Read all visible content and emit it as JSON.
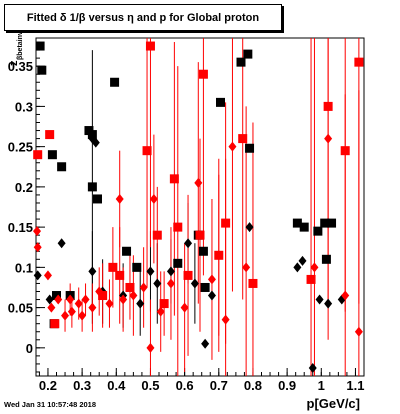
{
  "chart_data": {
    "type": "scatter",
    "title": "Fitted δ 1/β versus η and p for Global proton",
    "xlabel": "p[GeV/c]",
    "ylabel_main": "z",
    "ylabel_sub": "βbetainv",
    "xlim": [
      0.165,
      1.125
    ],
    "ylim": [
      -0.035,
      0.385
    ],
    "x_ticks": [
      "0.2",
      "0.3",
      "0.4",
      "0.5",
      "0.6",
      "0.7",
      "0.8",
      "0.9",
      "1",
      "1.1"
    ],
    "y_ticks": [
      "0",
      "0.05",
      "0.1",
      "0.15",
      "0.2",
      "0.25",
      "0.3",
      "0.35"
    ],
    "x_tick_values": [
      0.2,
      0.3,
      0.4,
      0.5,
      0.6,
      0.7,
      0.8,
      0.9,
      1.0,
      1.1
    ],
    "y_tick_values": [
      0,
      0.05,
      0.1,
      0.15,
      0.2,
      0.25,
      0.3,
      0.35
    ],
    "series": [
      {
        "color": "#000000",
        "marker": "square",
        "points": [
          {
            "x": 0.177,
            "y": 0.375,
            "err": 0.0
          },
          {
            "x": 0.182,
            "y": 0.345,
            "err": 0.0
          },
          {
            "x": 0.213,
            "y": 0.24,
            "err": 0.0
          },
          {
            "x": 0.218,
            "y": 0.03,
            "err": 0.0
          },
          {
            "x": 0.24,
            "y": 0.225,
            "err": 0.0
          },
          {
            "x": 0.32,
            "y": 0.27,
            "err": 0.0
          },
          {
            "x": 0.33,
            "y": 0.265,
            "err": 0.0
          },
          {
            "x": 0.33,
            "y": 0.2,
            "err": 0.17
          },
          {
            "x": 0.345,
            "y": 0.185,
            "err": 0.0
          },
          {
            "x": 0.395,
            "y": 0.33,
            "err": 0.0
          },
          {
            "x": 0.43,
            "y": 0.12,
            "err": 0.0
          },
          {
            "x": 0.46,
            "y": 0.1,
            "err": 0.0
          },
          {
            "x": 0.58,
            "y": 0.105,
            "err": 0.0
          },
          {
            "x": 0.64,
            "y": 0.14,
            "err": 0.0
          },
          {
            "x": 0.655,
            "y": 0.12,
            "err": 0.0
          },
          {
            "x": 0.66,
            "y": 0.075,
            "err": 0.0
          },
          {
            "x": 0.705,
            "y": 0.305,
            "err": 0.0
          },
          {
            "x": 0.765,
            "y": 0.355,
            "err": 0.0
          },
          {
            "x": 0.785,
            "y": 0.365,
            "err": 0.0
          },
          {
            "x": 0.79,
            "y": 0.248,
            "err": 0.0
          },
          {
            "x": 0.93,
            "y": 0.155,
            "err": 0.0
          },
          {
            "x": 0.95,
            "y": 0.15,
            "err": 0.0
          },
          {
            "x": 0.99,
            "y": 0.145,
            "err": 0.0
          },
          {
            "x": 1.01,
            "y": 0.155,
            "err": 0.0
          },
          {
            "x": 1.03,
            "y": 0.155,
            "err": 0.0
          },
          {
            "x": 1.015,
            "y": 0.11,
            "err": 0.0
          },
          {
            "x": 0.265,
            "y": 0.065,
            "err": 0.0
          },
          {
            "x": 0.225,
            "y": 0.065,
            "err": 0.0
          }
        ]
      },
      {
        "color": "#000000",
        "marker": "diamond",
        "points": [
          {
            "x": 0.17,
            "y": 0.09,
            "err": 0.0
          },
          {
            "x": 0.205,
            "y": 0.06,
            "err": 0.0
          },
          {
            "x": 0.24,
            "y": 0.13,
            "err": 0.0
          },
          {
            "x": 0.33,
            "y": 0.26,
            "err": 0.0
          },
          {
            "x": 0.34,
            "y": 0.255,
            "err": 0.0
          },
          {
            "x": 0.33,
            "y": 0.2,
            "err": 0.0
          },
          {
            "x": 0.33,
            "y": 0.095,
            "err": 0.05
          },
          {
            "x": 0.36,
            "y": 0.07,
            "err": 0.04
          },
          {
            "x": 0.42,
            "y": 0.065,
            "err": 0.04
          },
          {
            "x": 0.47,
            "y": 0.055,
            "err": 0.04
          },
          {
            "x": 0.5,
            "y": 0.095,
            "err": 0.05
          },
          {
            "x": 0.52,
            "y": 0.08,
            "err": 0.05
          },
          {
            "x": 0.56,
            "y": 0.095,
            "err": 0.04
          },
          {
            "x": 0.61,
            "y": 0.13,
            "err": 0.05
          },
          {
            "x": 0.63,
            "y": 0.08,
            "err": 0.05
          },
          {
            "x": 0.68,
            "y": 0.065,
            "err": 0.0
          },
          {
            "x": 0.66,
            "y": 0.005,
            "err": 0.0
          },
          {
            "x": 0.79,
            "y": 0.15,
            "err": 0.0
          },
          {
            "x": 0.93,
            "y": 0.1,
            "err": 0.0
          },
          {
            "x": 0.945,
            "y": 0.108,
            "err": 0.0
          },
          {
            "x": 0.975,
            "y": -0.025,
            "err": 0.0
          },
          {
            "x": 0.995,
            "y": 0.06,
            "err": 0.0
          },
          {
            "x": 1.02,
            "y": 0.055,
            "err": 0.0
          },
          {
            "x": 1.06,
            "y": 0.06,
            "err": 0.0
          }
        ]
      },
      {
        "color": "#ff0000",
        "marker": "square",
        "points": [
          {
            "x": 0.17,
            "y": 0.24,
            "err": 0.0
          },
          {
            "x": 0.205,
            "y": 0.265,
            "err": 0.0
          },
          {
            "x": 0.22,
            "y": 0.03,
            "err": 0.0
          },
          {
            "x": 0.39,
            "y": 0.1,
            "err": 0.05
          },
          {
            "x": 0.41,
            "y": 0.09,
            "err": 0.06
          },
          {
            "x": 0.49,
            "y": 0.245,
            "err": 0.17
          },
          {
            "x": 0.5,
            "y": 0.375,
            "err": 0.25
          },
          {
            "x": 0.52,
            "y": 0.14,
            "err": 0.06
          },
          {
            "x": 0.57,
            "y": 0.21,
            "err": 0.17
          },
          {
            "x": 0.58,
            "y": 0.15,
            "err": 0.2
          },
          {
            "x": 0.61,
            "y": 0.09,
            "err": 0.1
          },
          {
            "x": 0.645,
            "y": 0.14,
            "err": 0.12
          },
          {
            "x": 0.655,
            "y": 0.34,
            "err": 0.25
          },
          {
            "x": 0.7,
            "y": 0.115,
            "err": 0.12
          },
          {
            "x": 0.72,
            "y": 0.155,
            "err": 0.15
          },
          {
            "x": 0.77,
            "y": 0.26,
            "err": 0.2
          },
          {
            "x": 0.8,
            "y": 0.08,
            "err": 0.2
          },
          {
            "x": 0.97,
            "y": 0.085,
            "err": 0.3
          },
          {
            "x": 1.02,
            "y": 0.3,
            "err": 0.25
          },
          {
            "x": 1.07,
            "y": 0.245,
            "err": 0.2
          },
          {
            "x": 1.11,
            "y": 0.355,
            "err": 0.3
          },
          {
            "x": 0.36,
            "y": 0.065,
            "err": 0.04
          },
          {
            "x": 0.44,
            "y": 0.075,
            "err": 0.04
          },
          {
            "x": 0.54,
            "y": 0.055,
            "err": 0.04
          }
        ]
      },
      {
        "color": "#ff0000",
        "marker": "diamond",
        "points": [
          {
            "x": 0.168,
            "y": 0.145,
            "err": 0.0
          },
          {
            "x": 0.17,
            "y": 0.125,
            "err": 0.0
          },
          {
            "x": 0.2,
            "y": 0.09,
            "err": 0.0
          },
          {
            "x": 0.21,
            "y": 0.05,
            "err": 0.0
          },
          {
            "x": 0.23,
            "y": 0.06,
            "err": 0.0
          },
          {
            "x": 0.25,
            "y": 0.04,
            "err": 0.02
          },
          {
            "x": 0.27,
            "y": 0.045,
            "err": 0.02
          },
          {
            "x": 0.29,
            "y": 0.055,
            "err": 0.02
          },
          {
            "x": 0.31,
            "y": 0.06,
            "err": 0.02
          },
          {
            "x": 0.33,
            "y": 0.05,
            "err": 0.03
          },
          {
            "x": 0.35,
            "y": 0.07,
            "err": 0.03
          },
          {
            "x": 0.38,
            "y": 0.055,
            "err": 0.03
          },
          {
            "x": 0.41,
            "y": 0.185,
            "err": 0.06
          },
          {
            "x": 0.42,
            "y": 0.06,
            "err": 0.04
          },
          {
            "x": 0.45,
            "y": 0.065,
            "err": 0.05
          },
          {
            "x": 0.48,
            "y": 0.075,
            "err": 0.05
          },
          {
            "x": 0.5,
            "y": 0.0,
            "err": 0.06
          },
          {
            "x": 0.51,
            "y": 0.185,
            "err": 0.08
          },
          {
            "x": 0.53,
            "y": 0.045,
            "err": 0.05
          },
          {
            "x": 0.56,
            "y": 0.08,
            "err": 0.07
          },
          {
            "x": 0.6,
            "y": 0.05,
            "err": 0.08
          },
          {
            "x": 0.64,
            "y": 0.205,
            "err": 0.15
          },
          {
            "x": 0.68,
            "y": 0.085,
            "err": 0.1
          },
          {
            "x": 0.7,
            "y": 0.115,
            "err": 0.1
          },
          {
            "x": 0.72,
            "y": 0.035,
            "err": 0.2
          },
          {
            "x": 0.74,
            "y": 0.25,
            "err": 0.18
          },
          {
            "x": 0.78,
            "y": 0.1,
            "err": 0.2
          },
          {
            "x": 0.98,
            "y": 0.1,
            "err": 0.3
          },
          {
            "x": 1.02,
            "y": 0.26,
            "err": 0.25
          },
          {
            "x": 1.07,
            "y": 0.065,
            "err": 0.25
          },
          {
            "x": 1.11,
            "y": 0.02,
            "err": 0.3
          },
          {
            "x": 0.265,
            "y": 0.06,
            "err": 0.02
          },
          {
            "x": 0.3,
            "y": 0.04,
            "err": 0.02
          }
        ]
      }
    ],
    "grid": false,
    "legend": "none"
  },
  "footer": {
    "timestamp": "Wed Jan 31 10:57:48 2018"
  },
  "colors": {
    "black": "#000000",
    "red": "#ff0000"
  }
}
